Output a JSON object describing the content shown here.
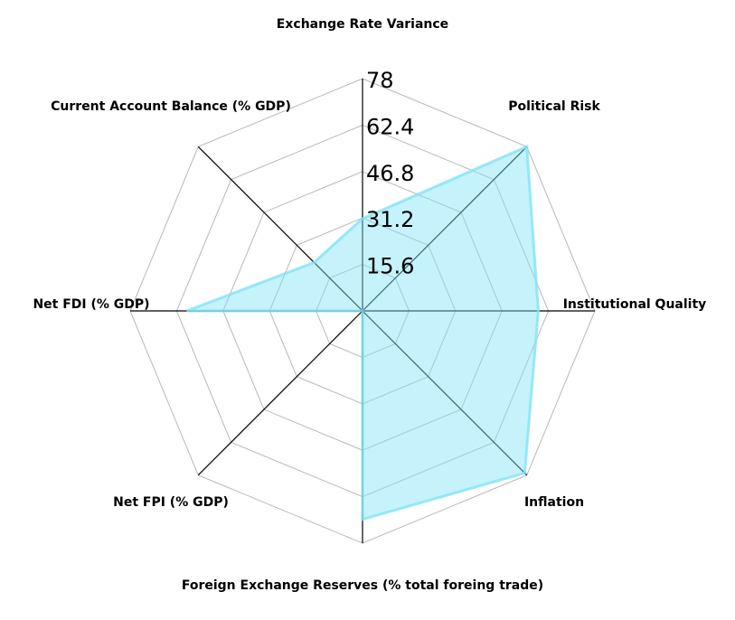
{
  "chart_data": {
    "type": "radar",
    "axes": [
      "Exchange Rate Variance",
      "Political Risk",
      "Institutional Quality",
      "Inflation",
      "Foreign Exchange Reserves (% total foreing trade)",
      "Net FPI (% GDP)",
      "Net FDI (% GDP)",
      "Current Account Balance (% GDP)"
    ],
    "ticks": [
      "15.6",
      "31.2",
      "46.8",
      "62.4",
      "78"
    ],
    "rmax": 78,
    "values": [
      31,
      78,
      59,
      77,
      70,
      0,
      59,
      23
    ],
    "colors": {
      "fill": "#7fe3f7",
      "stroke": "#7fe3f7",
      "grid": "#b8b8b8",
      "spoke": "#000000"
    },
    "legend": "none"
  }
}
